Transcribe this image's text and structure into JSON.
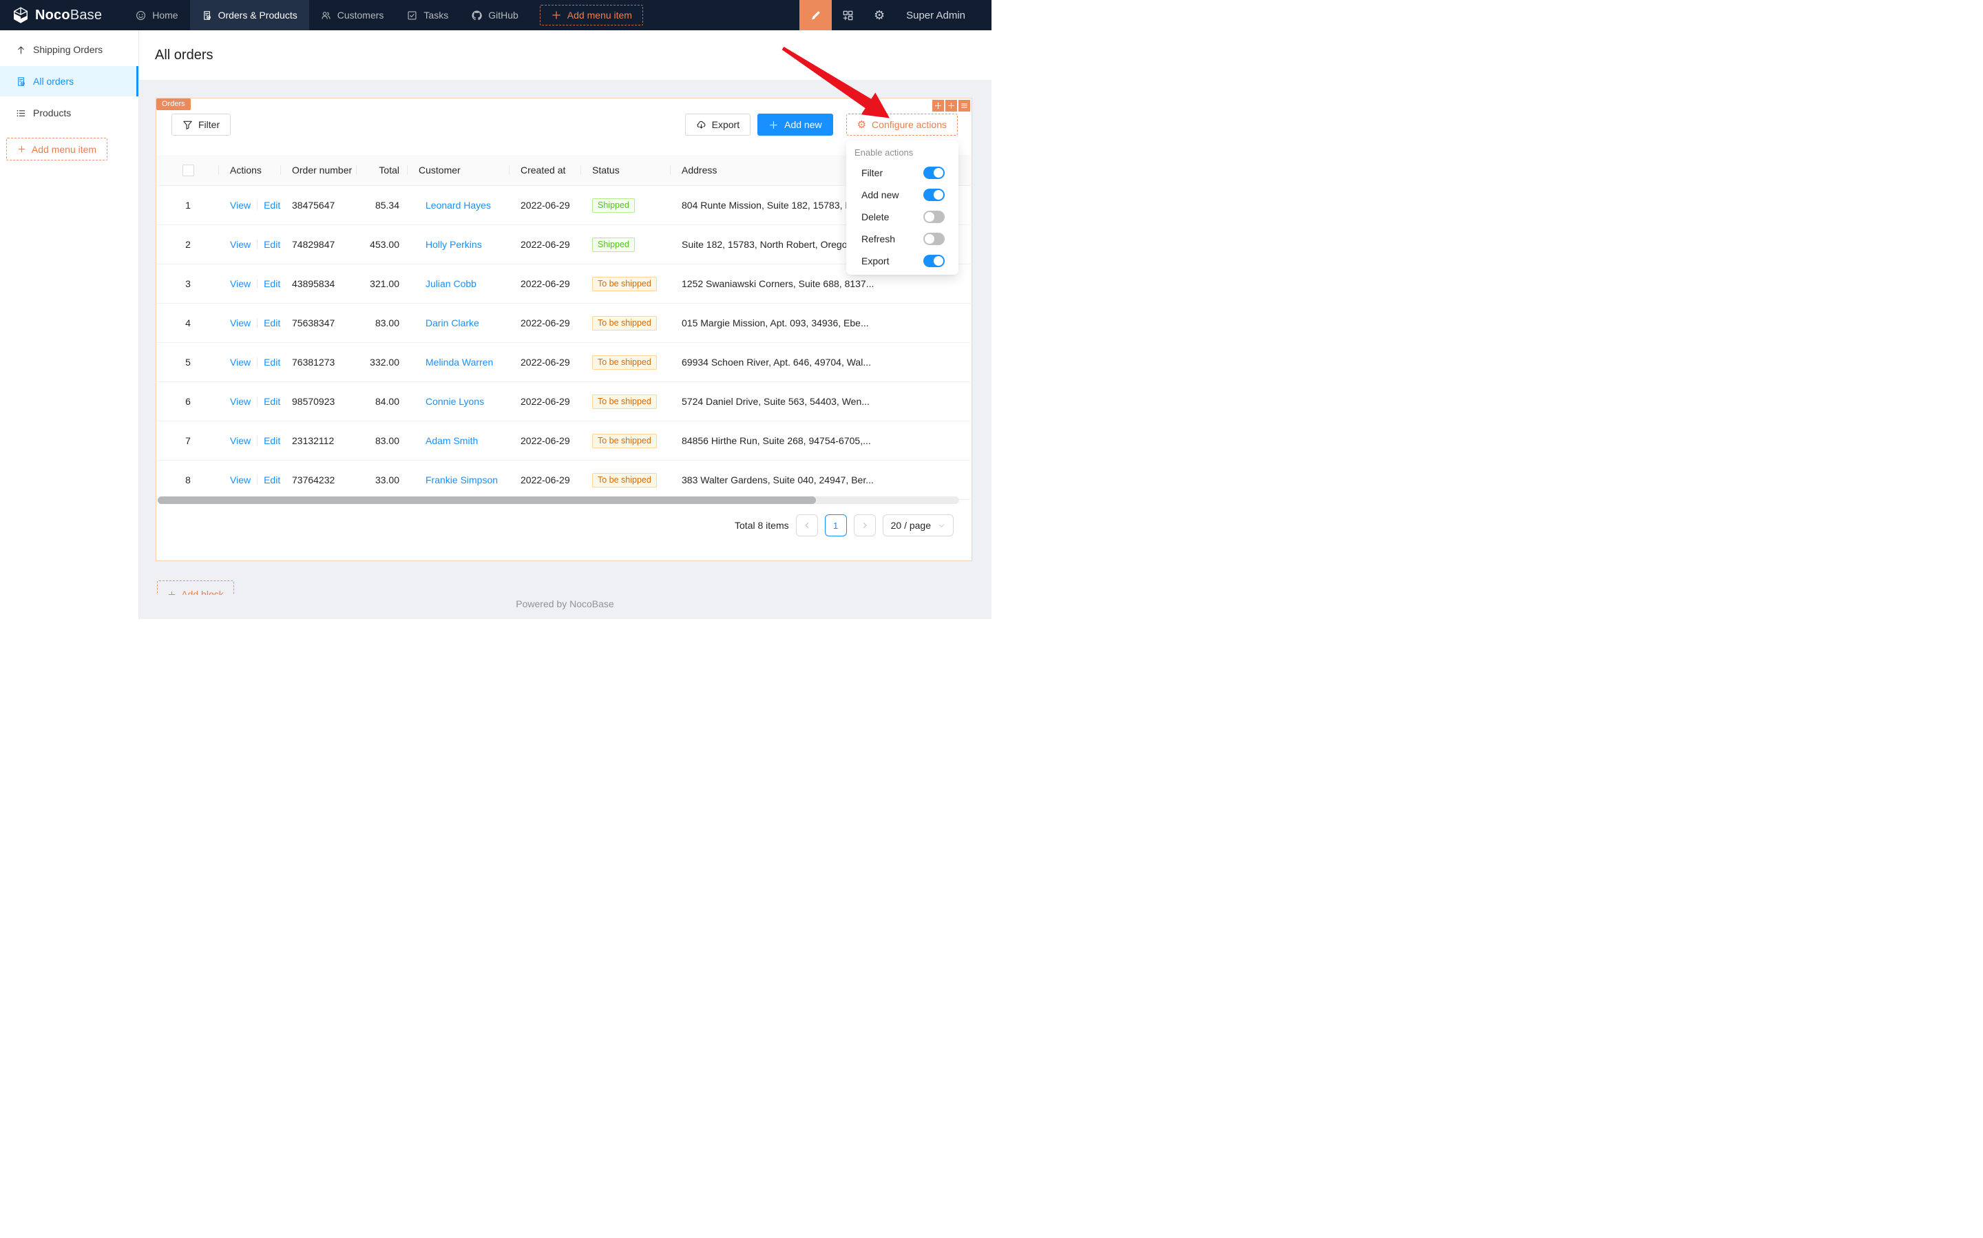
{
  "colors": {
    "accent_blue": "#1890ff",
    "designer_orange": "#ec8a5c",
    "orange_text": "#ed7b4e",
    "navbar_bg": "#111d31",
    "content_bg": "#eef0f3",
    "block_border": "#f6d0b2",
    "arrow_red": "#e8131c",
    "badge_success": {
      "text": "#52c41a",
      "bg": "#f6ffed",
      "border": "#b7eb8f"
    },
    "badge_warning": {
      "text": "#d46b08",
      "bg": "#fff7e6",
      "border": "#ffd591"
    }
  },
  "navbar": {
    "brand_bold": "Noco",
    "brand_light": "Base",
    "items": [
      {
        "label": "Home",
        "icon": "smile-icon",
        "active": false
      },
      {
        "label": "Orders & Products",
        "icon": "file-done-icon",
        "active": true
      },
      {
        "label": "Customers",
        "icon": "team-icon",
        "active": false
      },
      {
        "label": "Tasks",
        "icon": "check-square-icon",
        "active": false
      },
      {
        "label": "GitHub",
        "icon": "github-icon",
        "active": false
      }
    ],
    "add_menu_item": "Add menu item",
    "right_icons": [
      "ui-editor-pen-icon",
      "plugin-manager-icon",
      "settings-gear-icon"
    ],
    "user": "Super Admin"
  },
  "sidebar": {
    "items": [
      {
        "label": "Shipping Orders",
        "icon": "arrow-up-icon",
        "active": false
      },
      {
        "label": "All orders",
        "icon": "file-done-icon",
        "active": true
      },
      {
        "label": "Products",
        "icon": "list-icon",
        "active": false
      }
    ],
    "add_menu_item": "Add menu item"
  },
  "page": {
    "title": "All orders"
  },
  "block": {
    "tag": "Orders",
    "corner_icons": [
      "drag-icon",
      "add-icon",
      "menu-icon"
    ],
    "toolbar": {
      "filter": "Filter",
      "export": "Export",
      "add_new": "Add new",
      "configure_actions": "Configure actions"
    }
  },
  "dropdown": {
    "header": "Enable actions",
    "items": [
      {
        "label": "Filter",
        "on": true
      },
      {
        "label": "Add new",
        "on": true
      },
      {
        "label": "Delete",
        "on": false
      },
      {
        "label": "Refresh",
        "on": false
      },
      {
        "label": "Export",
        "on": true
      }
    ]
  },
  "table": {
    "columns": [
      "",
      "Actions",
      "Order number",
      "Total",
      "Customer",
      "Created at",
      "Status",
      "Address"
    ],
    "action_labels": [
      "View",
      "Edit"
    ],
    "rows": [
      {
        "index": "1",
        "order_number": "38475647",
        "total": "85.34",
        "customer": "Leonard Hayes",
        "created_at": "2022-06-29",
        "status": "Shipped",
        "status_type": "success",
        "address": "804 Runte Mission, Suite 182, 15783, N"
      },
      {
        "index": "2",
        "order_number": "74829847",
        "total": "453.00",
        "customer": "Holly Perkins",
        "created_at": "2022-06-29",
        "status": "Shipped",
        "status_type": "success",
        "address": "Suite 182, 15783, North Robert, Oregon"
      },
      {
        "index": "3",
        "order_number": "43895834",
        "total": "321.00",
        "customer": "Julian Cobb",
        "created_at": "2022-06-29",
        "status": "To be shipped",
        "status_type": "warning",
        "address": "1252 Swaniawski Corners, Suite 688, 8137..."
      },
      {
        "index": "4",
        "order_number": "75638347",
        "total": "83.00",
        "customer": "Darin Clarke",
        "created_at": "2022-06-29",
        "status": "To be shipped",
        "status_type": "warning",
        "address": "015 Margie Mission, Apt. 093, 34936, Ebe..."
      },
      {
        "index": "5",
        "order_number": "76381273",
        "total": "332.00",
        "customer": "Melinda Warren",
        "created_at": "2022-06-29",
        "status": "To be shipped",
        "status_type": "warning",
        "address": "69934 Schoen River, Apt. 646, 49704, Wal..."
      },
      {
        "index": "6",
        "order_number": "98570923",
        "total": "84.00",
        "customer": "Connie Lyons",
        "created_at": "2022-06-29",
        "status": "To be shipped",
        "status_type": "warning",
        "address": "5724 Daniel Drive, Suite 563, 54403, Wen..."
      },
      {
        "index": "7",
        "order_number": "23132112",
        "total": "83.00",
        "customer": "Adam Smith",
        "created_at": "2022-06-29",
        "status": "To be shipped",
        "status_type": "warning",
        "address": "84856 Hirthe Run, Suite 268, 94754-6705,..."
      },
      {
        "index": "8",
        "order_number": "73764232",
        "total": "33.00",
        "customer": "Frankie Simpson",
        "created_at": "2022-06-29",
        "status": "To be shipped",
        "status_type": "warning",
        "address": "383 Walter Gardens, Suite 040, 24947, Ber..."
      }
    ]
  },
  "pagination": {
    "total_text": "Total 8 items",
    "page": "1",
    "page_size": "20 / page"
  },
  "add_block_label": "Add block",
  "footer": "Powered by NocoBase"
}
